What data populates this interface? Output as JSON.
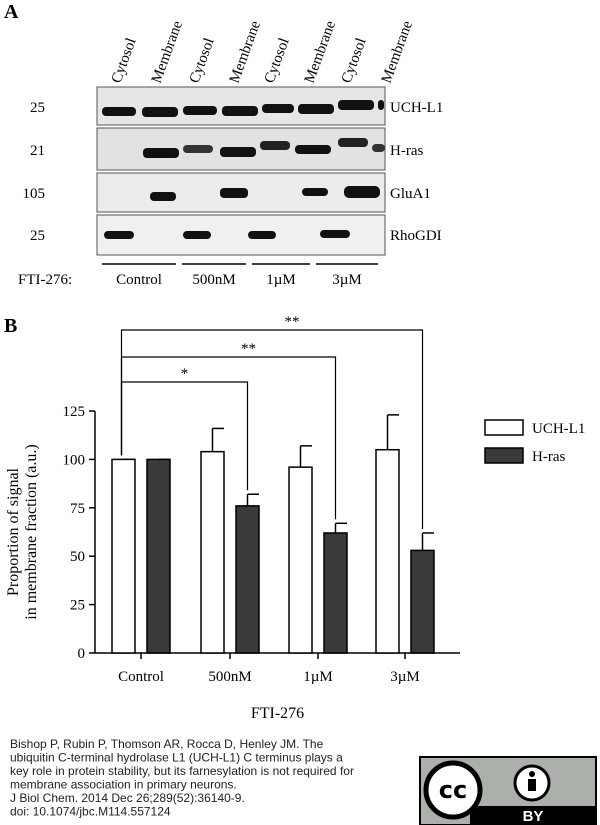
{
  "panel_a": {
    "label": "A",
    "lanes": [
      "Cytosol",
      "Membrane",
      "Cytosol",
      "Membrane",
      "Cytosol",
      "Membrane",
      "Cytosol",
      "Membrane"
    ],
    "rows": [
      {
        "mw": "25",
        "name": "UCH-L1"
      },
      {
        "mw": "21",
        "name": "H-ras"
      },
      {
        "mw": "105",
        "name": "GluA1"
      },
      {
        "mw": "25",
        "name": "RhoGDI"
      }
    ],
    "treatment_label": "FTI-276:",
    "groups": [
      "Control",
      "500nM",
      "1µM",
      "3µM"
    ]
  },
  "chart_data": {
    "type": "bar",
    "panel_label": "B",
    "xlabel": "FTI-276",
    "ylabel": [
      "Proportion of signal",
      "in membrane fraction (a.u.)"
    ],
    "categories": [
      "Control",
      "500nM",
      "1µM",
      "3µM"
    ],
    "series": [
      {
        "name": "UCH-L1",
        "color": "#ffffff",
        "values": [
          100,
          104,
          96,
          105
        ],
        "errors": [
          0,
          12,
          11,
          18
        ]
      },
      {
        "name": "H-ras",
        "color": "#3a3a3a",
        "values": [
          100,
          76,
          62,
          53
        ],
        "errors": [
          0,
          6,
          5,
          9
        ]
      }
    ],
    "ylim": [
      0,
      125
    ],
    "yticks": [
      0,
      25,
      50,
      75,
      100,
      125
    ],
    "annotations": [
      "*",
      "**",
      "**"
    ],
    "legend": "right"
  },
  "citation": [
    "Bishop P, Rubin P, Thomson AR, Rocca D, Henley JM. The",
    "ubiquitin C-terminal hydrolase L1 (UCH-L1) C terminus plays a",
    "key role in protein stability, but its farnesylation is not required for",
    "membrane association in primary neurons.",
    "J Biol Chem. 2014 Dec 26;289(52):36140-9.",
    "doi: 10.1074/jbc.M114.557124"
  ],
  "license": "BY"
}
